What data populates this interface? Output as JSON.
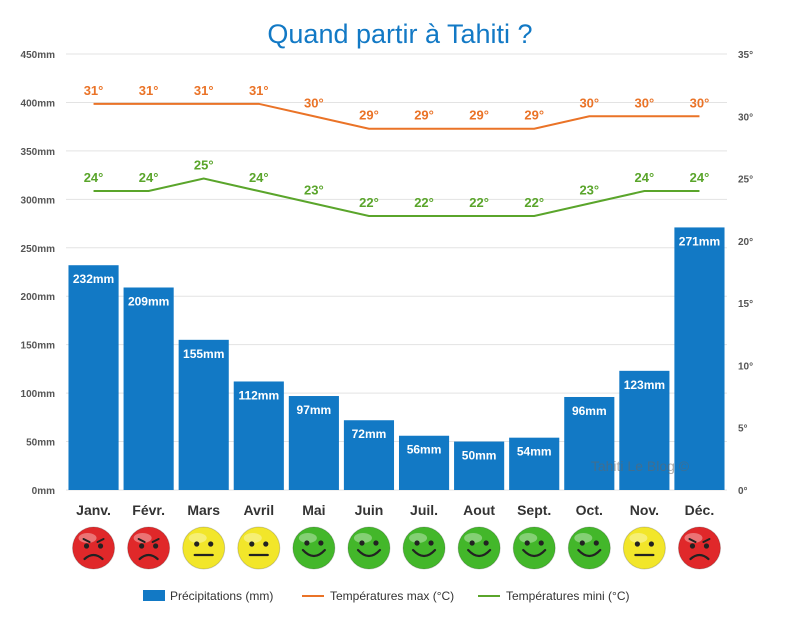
{
  "chart_data": {
    "type": "bar",
    "title": "Quand partir à Tahiti ?",
    "categories": [
      "Janv.",
      "Févr.",
      "Mars",
      "Avril",
      "Mai",
      "Juin",
      "Juil.",
      "Aout",
      "Sept.",
      "Oct.",
      "Nov.",
      "Déc."
    ],
    "series": [
      {
        "name": "Précipitations (mm)",
        "type": "bar",
        "axis": "left",
        "color": "#1279c5",
        "values": [
          232,
          209,
          155,
          112,
          97,
          72,
          56,
          50,
          54,
          96,
          123,
          271
        ],
        "labels": [
          "232mm",
          "209mm",
          "155mm",
          "112mm",
          "97mm",
          "72mm",
          "56mm",
          "50mm",
          "54mm",
          "96mm",
          "123mm",
          "271mm"
        ]
      },
      {
        "name": "Températures max (°C)",
        "type": "line",
        "axis": "right",
        "color": "#ea7327",
        "values": [
          31,
          31,
          31,
          31,
          30,
          29,
          29,
          29,
          29,
          30,
          30,
          30
        ],
        "labels": [
          "31°",
          "31°",
          "31°",
          "31°",
          "30°",
          "29°",
          "29°",
          "29°",
          "29°",
          "30°",
          "30°",
          "30°"
        ]
      },
      {
        "name": "Températures mini (°C)",
        "type": "line",
        "axis": "right",
        "color": "#5aa52b",
        "values": [
          24,
          24,
          25,
          24,
          23,
          22,
          22,
          22,
          22,
          23,
          24,
          24
        ],
        "labels": [
          "24°",
          "24°",
          "25°",
          "24°",
          "23°",
          "22°",
          "22°",
          "22°",
          "22°",
          "23°",
          "24°",
          "24°"
        ]
      }
    ],
    "left_axis": {
      "ylim": [
        0,
        450
      ],
      "ticks": [
        0,
        50,
        100,
        150,
        200,
        250,
        300,
        350,
        400,
        450
      ],
      "tick_labels": [
        "0mm",
        "50mm",
        "100mm",
        "150mm",
        "200mm",
        "250mm",
        "300mm",
        "350mm",
        "400mm",
        "450mm"
      ]
    },
    "right_axis": {
      "ylim": [
        0,
        35
      ],
      "ticks": [
        0,
        5,
        10,
        15,
        20,
        25,
        30,
        35
      ],
      "tick_labels": [
        "0°",
        "5°",
        "10°",
        "15°",
        "20°",
        "25°",
        "30°",
        "35°"
      ]
    },
    "grid": true,
    "legend": "bottom",
    "moods": [
      "sad",
      "sad",
      "neutral",
      "neutral",
      "happy",
      "happy",
      "happy",
      "happy",
      "happy",
      "happy",
      "neutral",
      "sad"
    ],
    "mood_colors": {
      "sad": "#e0282a",
      "neutral": "#f2e62a",
      "happy": "#43b72a"
    },
    "watermark": "Tahiti Le Blog ©"
  }
}
